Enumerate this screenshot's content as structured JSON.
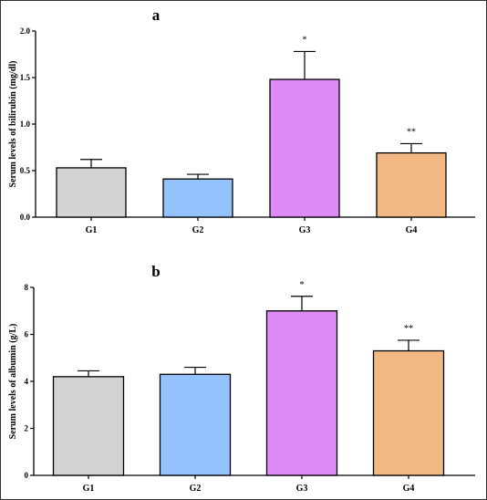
{
  "chart_data": [
    {
      "type": "bar",
      "panel": "a",
      "ylabel": "Serum levels of bilirubin (mg/dl)",
      "xlabel": "",
      "categories": [
        "G1",
        "G2",
        "G3",
        "G4"
      ],
      "values": [
        0.53,
        0.41,
        1.48,
        0.69
      ],
      "errors": [
        0.09,
        0.05,
        0.3,
        0.1
      ],
      "annotations": [
        "",
        "",
        "*",
        "**"
      ],
      "colors": [
        "#d3d3d3",
        "#94c2fc",
        "#df8bf7",
        "#f2b984"
      ],
      "ylim": [
        0,
        2.0
      ],
      "yticks": [
        0.0,
        0.5,
        1.0,
        1.5,
        2.0
      ],
      "ytick_labels": [
        "0.0",
        "0.5",
        "1.0",
        "1.5",
        "2.0"
      ],
      "grid": false
    },
    {
      "type": "bar",
      "panel": "b",
      "ylabel": "Serum levels of albumin (g/L)",
      "xlabel": "",
      "categories": [
        "G1",
        "G2",
        "G3",
        "G4"
      ],
      "values": [
        4.2,
        4.3,
        7.0,
        5.3
      ],
      "errors": [
        0.25,
        0.3,
        0.62,
        0.45
      ],
      "annotations": [
        "",
        "",
        "*",
        "**"
      ],
      "colors": [
        "#d3d3d3",
        "#94c2fc",
        "#df8bf7",
        "#f2b984"
      ],
      "ylim": [
        0,
        8
      ],
      "yticks": [
        0,
        2,
        4,
        6,
        8
      ],
      "ytick_labels": [
        "0",
        "2",
        "4",
        "6",
        "8"
      ],
      "grid": false
    }
  ]
}
